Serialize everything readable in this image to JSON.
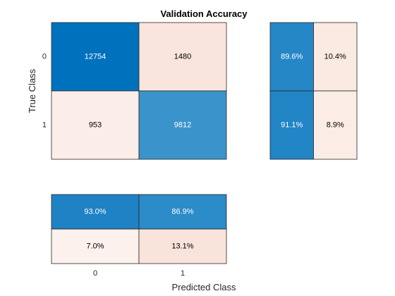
{
  "chart_data": {
    "type": "heatmap",
    "title": "Validation Accuracy",
    "xlabel": "Predicted Class",
    "ylabel": "True Class",
    "classes": [
      "0",
      "1"
    ],
    "matrix": [
      [
        12754,
        1480
      ],
      [
        953,
        9812
      ]
    ],
    "row_summary": {
      "values": [
        [
          "89.6%",
          "10.4%"
        ],
        [
          "91.1%",
          "8.9%"
        ]
      ],
      "fractions": [
        [
          0.896,
          0.104
        ],
        [
          0.911,
          0.089
        ]
      ]
    },
    "column_summary": {
      "values": [
        [
          "93.0%",
          "86.9%"
        ],
        [
          "7.0%",
          "13.1%"
        ]
      ],
      "fractions": [
        [
          0.93,
          0.869
        ],
        [
          0.07,
          0.131
        ]
      ]
    },
    "colors": {
      "correct_dark": "#0072bd",
      "correct_light": "#ffffff",
      "incorrect_dark": "#d95319",
      "incorrect_light": "#ffffff"
    }
  }
}
